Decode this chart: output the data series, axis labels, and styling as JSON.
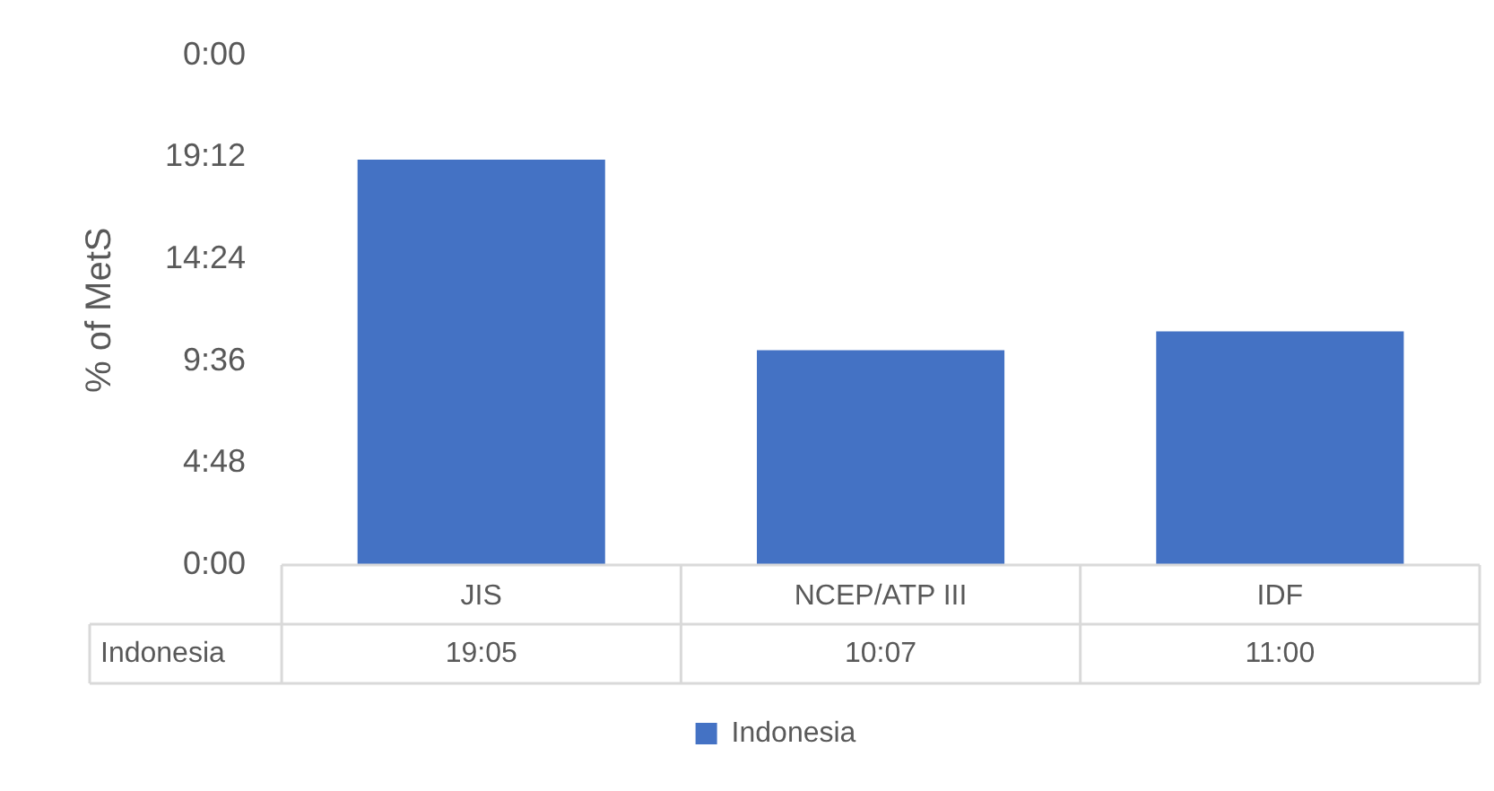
{
  "chart_data": {
    "type": "bar",
    "ylabel": "% of MetS",
    "categories": [
      "JIS",
      "NCEP/ATP III",
      "IDF"
    ],
    "series": [
      {
        "name": "Indonesia",
        "color": "#4472c4",
        "values": [
          19.083,
          10.117,
          11.0
        ],
        "value_labels": [
          "19:05",
          "10:07",
          "11:00"
        ]
      }
    ],
    "ylim": [
      0,
      24
    ],
    "yticks": [
      {
        "value": 0,
        "label": "0:00"
      },
      {
        "value": 4.8,
        "label": "4:48"
      },
      {
        "value": 9.6,
        "label": "9:36"
      },
      {
        "value": 14.4,
        "label": "14:24"
      },
      {
        "value": 19.2,
        "label": "19:12"
      },
      {
        "value": 24,
        "label": "0:00"
      }
    ],
    "grid": false,
    "legend": "bottom"
  }
}
